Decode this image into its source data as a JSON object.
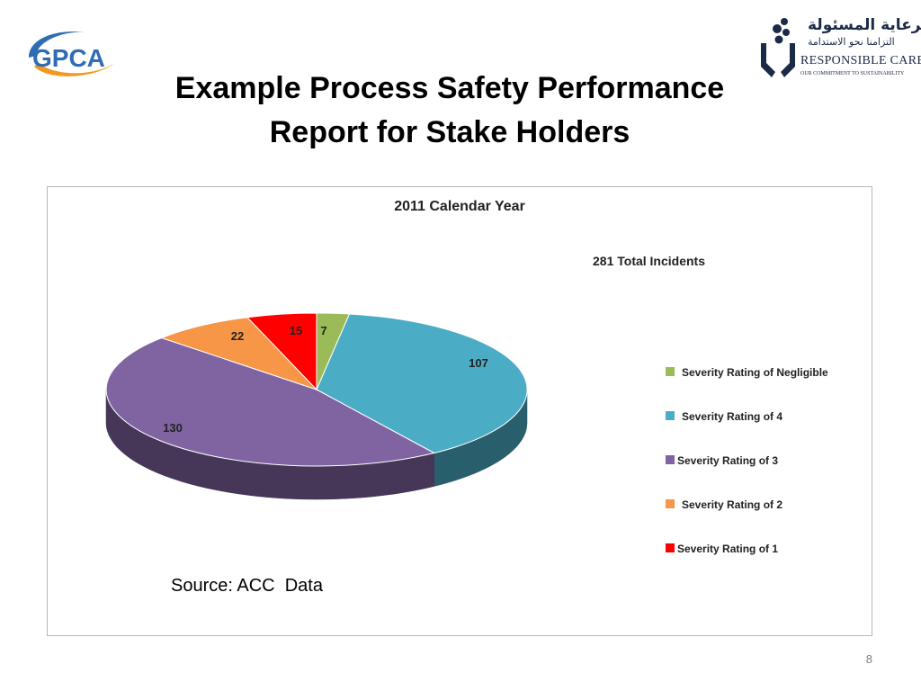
{
  "logos": {
    "gpca_text": "GPCA",
    "rc_arabic_line1": "الرعاية المسئولة",
    "rc_arabic_line2": "التزامنا نحو الاستدامة",
    "rc_name": "RESPONSIBLE CARE®",
    "rc_tagline": "OUR COMMITMENT TO SUSTAINABILITY"
  },
  "slide": {
    "title_line1": "Example Process Safety Performance",
    "title_line2": "Report for Stake Holders",
    "source": "Source: ACC  Data",
    "page_number": "8"
  },
  "colors": {
    "gpca_blue": "#2e6db4",
    "gpca_orange": "#f39a1e",
    "rc_navy": "#1b2a47"
  },
  "chart_data": {
    "type": "pie",
    "title": "2011 Calendar Year",
    "annotation": "281 Total Incidents",
    "legend_position": "right",
    "three_d": true,
    "slices": [
      {
        "label": "Severity Rating of Negligible",
        "value": 7,
        "color": "#9bbb59"
      },
      {
        "label": "Severity Rating of 4",
        "value": 107,
        "color": "#4bacc6"
      },
      {
        "label": "Severity Rating of 3",
        "value": 130,
        "color": "#8064a2"
      },
      {
        "label": "Severity Rating of 2",
        "value": 22,
        "color": "#f79646"
      },
      {
        "label": "Severity Rating of 1",
        "value": 15,
        "color": "#ff0000"
      }
    ]
  }
}
